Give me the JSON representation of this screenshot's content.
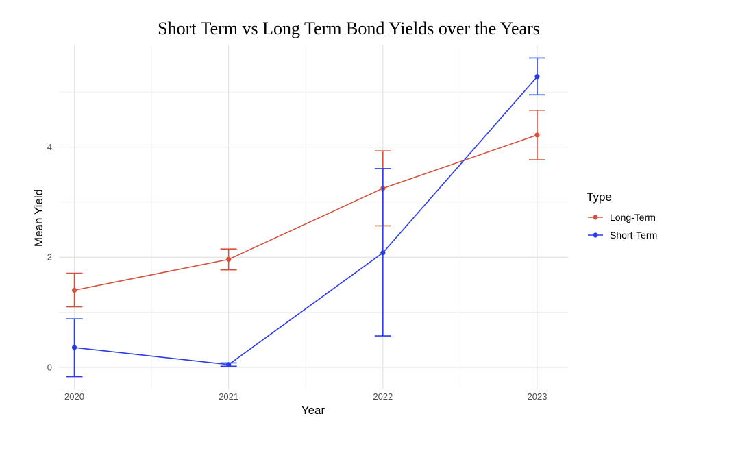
{
  "chart_data": {
    "type": "line",
    "title": "Short Term vs Long Term Bond Yields over the Years",
    "xlabel": "Year",
    "ylabel": "Mean Yield",
    "x": [
      2020,
      2021,
      2022,
      2023
    ],
    "x_tick_labels": [
      "2020",
      "2021",
      "2022",
      "2023"
    ],
    "xlim": [
      2019.9,
      2023.2
    ],
    "y_ticks": [
      0,
      2,
      4
    ],
    "y_tick_labels": [
      "0",
      "2",
      "4"
    ],
    "ylim": [
      -0.4,
      5.85
    ],
    "grid": true,
    "legend": {
      "title": "Type",
      "placement": "right"
    },
    "series": [
      {
        "name": "Long-Term",
        "color": "#d4533f",
        "values": [
          1.4,
          1.96,
          3.25,
          4.22
        ],
        "error_low": [
          1.1,
          1.77,
          2.57,
          3.77
        ],
        "error_high": [
          1.71,
          2.15,
          3.93,
          4.67
        ]
      },
      {
        "name": "Short-Term",
        "color": "#2a3be8",
        "values": [
          0.36,
          0.05,
          2.08,
          5.28
        ],
        "error_low": [
          -0.17,
          0.02,
          0.57,
          4.95
        ],
        "error_high": [
          0.88,
          0.08,
          3.61,
          5.62
        ]
      }
    ]
  }
}
